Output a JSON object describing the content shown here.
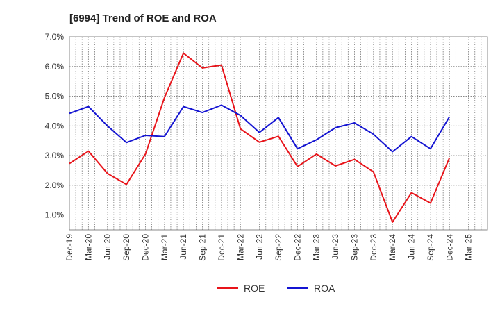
{
  "chart_data": {
    "type": "line",
    "title": "[6994]  Trend of ROE and ROA",
    "xlabel": "",
    "ylabel": "",
    "categories": [
      "Dec-19",
      "Mar-20",
      "Jun-20",
      "Sep-20",
      "Dec-20",
      "Mar-21",
      "Jun-21",
      "Sep-21",
      "Dec-21",
      "Mar-22",
      "Jun-22",
      "Sep-22",
      "Dec-22",
      "Mar-23",
      "Jun-23",
      "Sep-23",
      "Dec-23",
      "Mar-24",
      "Jun-24",
      "Sep-24",
      "Dec-24",
      "Mar-25"
    ],
    "ylim": [
      0.5,
      7.0
    ],
    "yticks": [
      1.0,
      2.0,
      3.0,
      4.0,
      5.0,
      6.0,
      7.0
    ],
    "ytick_labels": [
      "1.0%",
      "2.0%",
      "3.0%",
      "4.0%",
      "5.0%",
      "6.0%",
      "7.0%"
    ],
    "grid": true,
    "legend_position": "bottom-center",
    "series": [
      {
        "name": "ROE",
        "color": "#e8141a",
        "values": [
          2.73,
          3.15,
          2.4,
          2.03,
          3.05,
          4.95,
          6.45,
          5.95,
          6.05,
          3.9,
          3.45,
          3.65,
          2.63,
          3.05,
          2.65,
          2.87,
          2.45,
          0.76,
          1.75,
          1.4,
          2.93,
          null
        ]
      },
      {
        "name": "ROA",
        "color": "#1414d2",
        "values": [
          4.42,
          4.65,
          4.0,
          3.44,
          3.68,
          3.64,
          4.65,
          4.45,
          4.7,
          4.35,
          3.78,
          4.28,
          3.23,
          3.53,
          3.94,
          4.1,
          3.72,
          3.13,
          3.64,
          3.23,
          4.31,
          null
        ]
      }
    ]
  }
}
